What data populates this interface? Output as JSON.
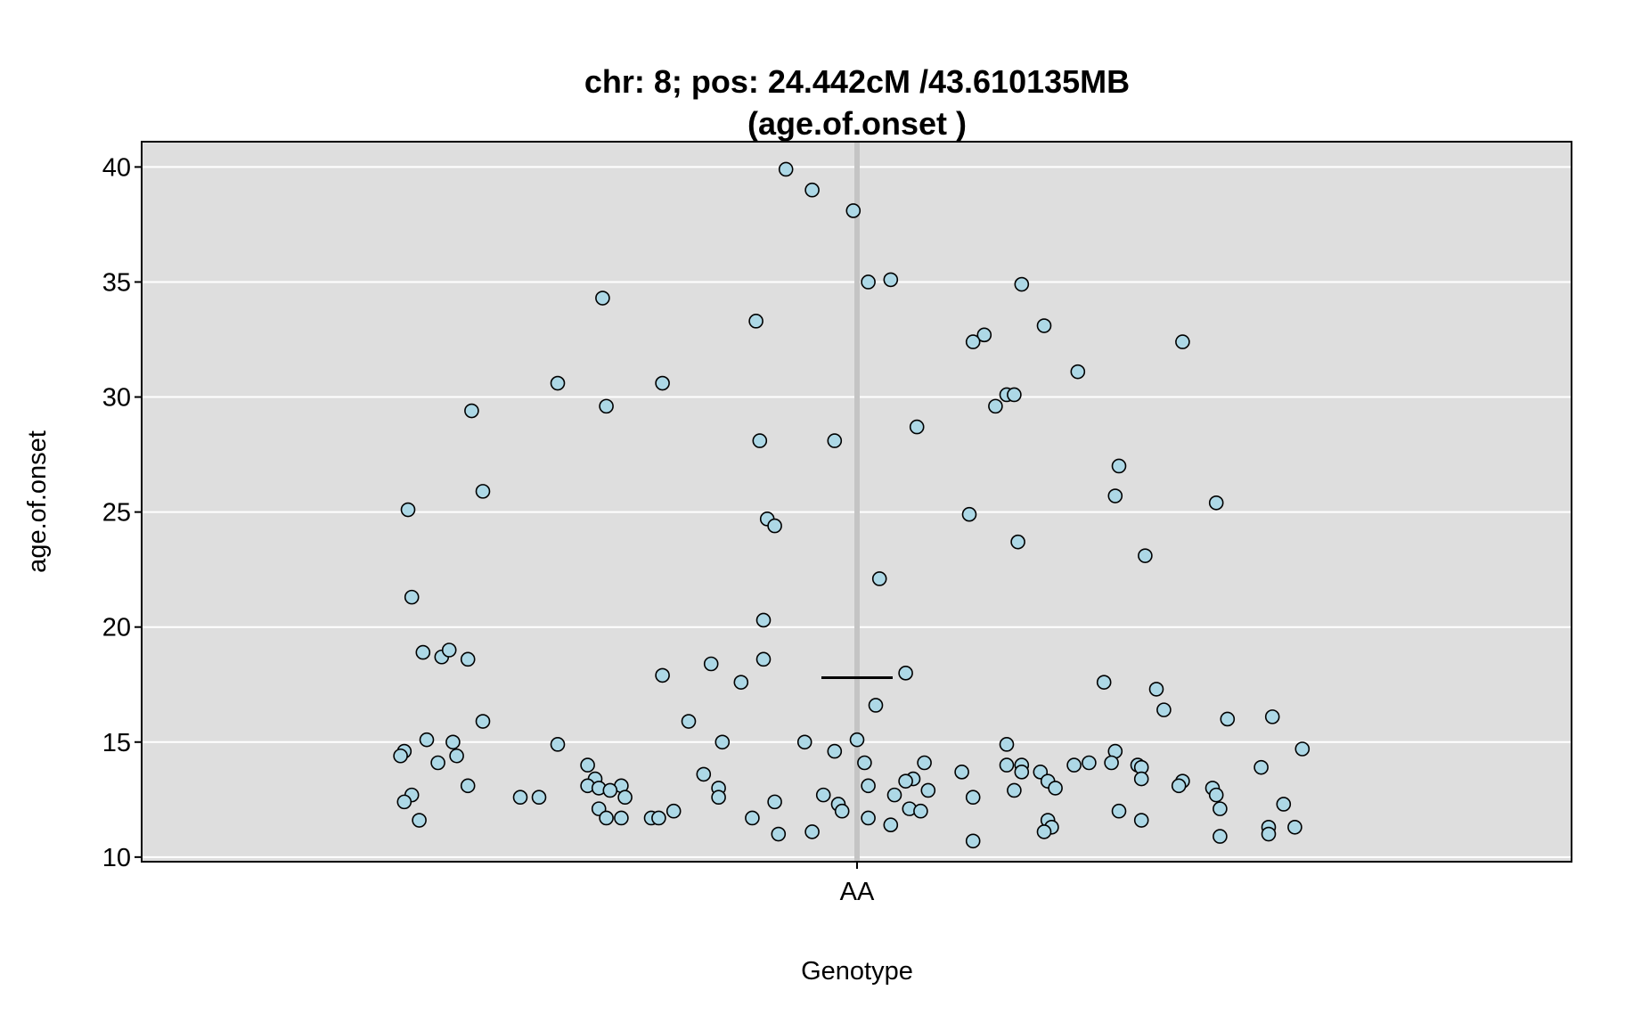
{
  "chart_data": {
    "type": "scatter",
    "title_line1": "chr: 8; pos: 24.442cM /43.610135MB",
    "title_line2": "(age.of.onset )",
    "xlabel": "Genotype",
    "ylabel": "age.of.onset",
    "categories": [
      "AA"
    ],
    "ylim": [
      9.8,
      41.1
    ],
    "yticks": [
      10,
      15,
      20,
      25,
      30,
      35,
      40
    ],
    "grid": true,
    "mean_line": 17.8,
    "colors": {
      "panel_bg": "#dedede",
      "grid": "#ffffff",
      "point_fill": "#add8e6",
      "point_stroke": "#000000",
      "center_line": "#c4c4c4"
    },
    "points": [
      {
        "x": -0.19,
        "y": 39.9
      },
      {
        "x": -0.12,
        "y": 39.0
      },
      {
        "x": -0.01,
        "y": 38.1
      },
      {
        "x": 0.03,
        "y": 35.0
      },
      {
        "x": 0.09,
        "y": 35.1
      },
      {
        "x": 0.44,
        "y": 34.9
      },
      {
        "x": -0.68,
        "y": 34.3
      },
      {
        "x": -0.27,
        "y": 33.3
      },
      {
        "x": 0.5,
        "y": 33.1
      },
      {
        "x": 0.34,
        "y": 32.7
      },
      {
        "x": 0.31,
        "y": 32.4
      },
      {
        "x": 0.87,
        "y": 32.4
      },
      {
        "x": 0.59,
        "y": 31.1
      },
      {
        "x": -0.8,
        "y": 30.6
      },
      {
        "x": -0.52,
        "y": 30.6
      },
      {
        "x": 0.4,
        "y": 30.1
      },
      {
        "x": 0.42,
        "y": 30.1
      },
      {
        "x": -0.67,
        "y": 29.6
      },
      {
        "x": 0.37,
        "y": 29.6
      },
      {
        "x": -1.03,
        "y": 29.4
      },
      {
        "x": 0.16,
        "y": 28.7
      },
      {
        "x": -0.26,
        "y": 28.1
      },
      {
        "x": -0.06,
        "y": 28.1
      },
      {
        "x": 0.7,
        "y": 27.0
      },
      {
        "x": -1.0,
        "y": 25.9
      },
      {
        "x": 0.69,
        "y": 25.7
      },
      {
        "x": 0.96,
        "y": 25.4
      },
      {
        "x": -1.2,
        "y": 25.1
      },
      {
        "x": 0.3,
        "y": 24.9
      },
      {
        "x": -0.24,
        "y": 24.7
      },
      {
        "x": -0.22,
        "y": 24.4
      },
      {
        "x": 0.43,
        "y": 23.7
      },
      {
        "x": 0.77,
        "y": 23.1
      },
      {
        "x": 0.06,
        "y": 22.1
      },
      {
        "x": -1.19,
        "y": 21.3
      },
      {
        "x": -0.25,
        "y": 20.3
      },
      {
        "x": -1.16,
        "y": 18.9
      },
      {
        "x": -1.11,
        "y": 18.7
      },
      {
        "x": -1.04,
        "y": 18.6
      },
      {
        "x": -1.09,
        "y": 19.0
      },
      {
        "x": -0.25,
        "y": 18.6
      },
      {
        "x": -0.39,
        "y": 18.4
      },
      {
        "x": 0.13,
        "y": 18.0
      },
      {
        "x": -0.52,
        "y": 17.9
      },
      {
        "x": -0.31,
        "y": 17.6
      },
      {
        "x": 0.66,
        "y": 17.6
      },
      {
        "x": 0.8,
        "y": 17.3
      },
      {
        "x": 0.05,
        "y": 16.6
      },
      {
        "x": 0.82,
        "y": 16.4
      },
      {
        "x": 1.11,
        "y": 16.1
      },
      {
        "x": 0.99,
        "y": 16.0
      },
      {
        "x": -1.0,
        "y": 15.9
      },
      {
        "x": -0.45,
        "y": 15.9
      },
      {
        "x": -1.15,
        "y": 15.1
      },
      {
        "x": -1.08,
        "y": 15.0
      },
      {
        "x": -0.8,
        "y": 14.9
      },
      {
        "x": -0.36,
        "y": 15.0
      },
      {
        "x": -0.14,
        "y": 15.0
      },
      {
        "x": 0.0,
        "y": 15.1
      },
      {
        "x": 0.4,
        "y": 14.9
      },
      {
        "x": -1.21,
        "y": 14.6
      },
      {
        "x": -0.06,
        "y": 14.6
      },
      {
        "x": 0.69,
        "y": 14.6
      },
      {
        "x": 1.19,
        "y": 14.7
      },
      {
        "x": -1.22,
        "y": 14.4
      },
      {
        "x": -1.07,
        "y": 14.4
      },
      {
        "x": -1.12,
        "y": 14.1
      },
      {
        "x": -0.72,
        "y": 14.0
      },
      {
        "x": 0.02,
        "y": 14.1
      },
      {
        "x": 0.18,
        "y": 14.1
      },
      {
        "x": 0.4,
        "y": 14.0
      },
      {
        "x": 0.44,
        "y": 14.0
      },
      {
        "x": 0.58,
        "y": 14.0
      },
      {
        "x": 0.62,
        "y": 14.1
      },
      {
        "x": 0.68,
        "y": 14.1
      },
      {
        "x": 0.75,
        "y": 14.0
      },
      {
        "x": 0.76,
        "y": 13.9
      },
      {
        "x": 1.08,
        "y": 13.9
      },
      {
        "x": -0.41,
        "y": 13.6
      },
      {
        "x": 0.28,
        "y": 13.7
      },
      {
        "x": 0.44,
        "y": 13.7
      },
      {
        "x": 0.49,
        "y": 13.7
      },
      {
        "x": -0.7,
        "y": 13.4
      },
      {
        "x": 0.15,
        "y": 13.4
      },
      {
        "x": 0.76,
        "y": 13.4
      },
      {
        "x": 0.51,
        "y": 13.3
      },
      {
        "x": 0.13,
        "y": 13.3
      },
      {
        "x": 0.87,
        "y": 13.3
      },
      {
        "x": -1.04,
        "y": 13.1
      },
      {
        "x": -0.72,
        "y": 13.1
      },
      {
        "x": -0.63,
        "y": 13.1
      },
      {
        "x": 0.03,
        "y": 13.1
      },
      {
        "x": 0.86,
        "y": 13.1
      },
      {
        "x": -0.69,
        "y": 13.0
      },
      {
        "x": -0.37,
        "y": 13.0
      },
      {
        "x": 0.53,
        "y": 13.0
      },
      {
        "x": 0.95,
        "y": 13.0
      },
      {
        "x": -0.66,
        "y": 12.9
      },
      {
        "x": 0.19,
        "y": 12.9
      },
      {
        "x": 0.42,
        "y": 12.9
      },
      {
        "x": -0.85,
        "y": 12.6
      },
      {
        "x": -0.62,
        "y": 12.6
      },
      {
        "x": -0.37,
        "y": 12.6
      },
      {
        "x": 0.31,
        "y": 12.6
      },
      {
        "x": -0.9,
        "y": 12.6
      },
      {
        "x": -0.09,
        "y": 12.7
      },
      {
        "x": 0.1,
        "y": 12.7
      },
      {
        "x": -1.19,
        "y": 12.7
      },
      {
        "x": 0.96,
        "y": 12.7
      },
      {
        "x": -1.21,
        "y": 12.4
      },
      {
        "x": -0.22,
        "y": 12.4
      },
      {
        "x": -0.05,
        "y": 12.3
      },
      {
        "x": 1.14,
        "y": 12.3
      },
      {
        "x": -0.69,
        "y": 12.1
      },
      {
        "x": 0.14,
        "y": 12.1
      },
      {
        "x": 0.97,
        "y": 12.1
      },
      {
        "x": -0.49,
        "y": 12.0
      },
      {
        "x": -0.04,
        "y": 12.0
      },
      {
        "x": 0.17,
        "y": 12.0
      },
      {
        "x": 0.7,
        "y": 12.0
      },
      {
        "x": -0.67,
        "y": 11.7
      },
      {
        "x": -0.63,
        "y": 11.7
      },
      {
        "x": -0.55,
        "y": 11.7
      },
      {
        "x": -0.53,
        "y": 11.7
      },
      {
        "x": -0.28,
        "y": 11.7
      },
      {
        "x": 0.03,
        "y": 11.7
      },
      {
        "x": -1.17,
        "y": 11.6
      },
      {
        "x": 0.51,
        "y": 11.6
      },
      {
        "x": 0.76,
        "y": 11.6
      },
      {
        "x": 0.09,
        "y": 11.4
      },
      {
        "x": 0.52,
        "y": 11.3
      },
      {
        "x": 1.1,
        "y": 11.3
      },
      {
        "x": 1.17,
        "y": 11.3
      },
      {
        "x": -0.12,
        "y": 11.1
      },
      {
        "x": 0.5,
        "y": 11.1
      },
      {
        "x": -0.21,
        "y": 11.0
      },
      {
        "x": 1.1,
        "y": 11.0
      },
      {
        "x": 0.97,
        "y": 10.9
      },
      {
        "x": 0.31,
        "y": 10.7
      }
    ]
  }
}
